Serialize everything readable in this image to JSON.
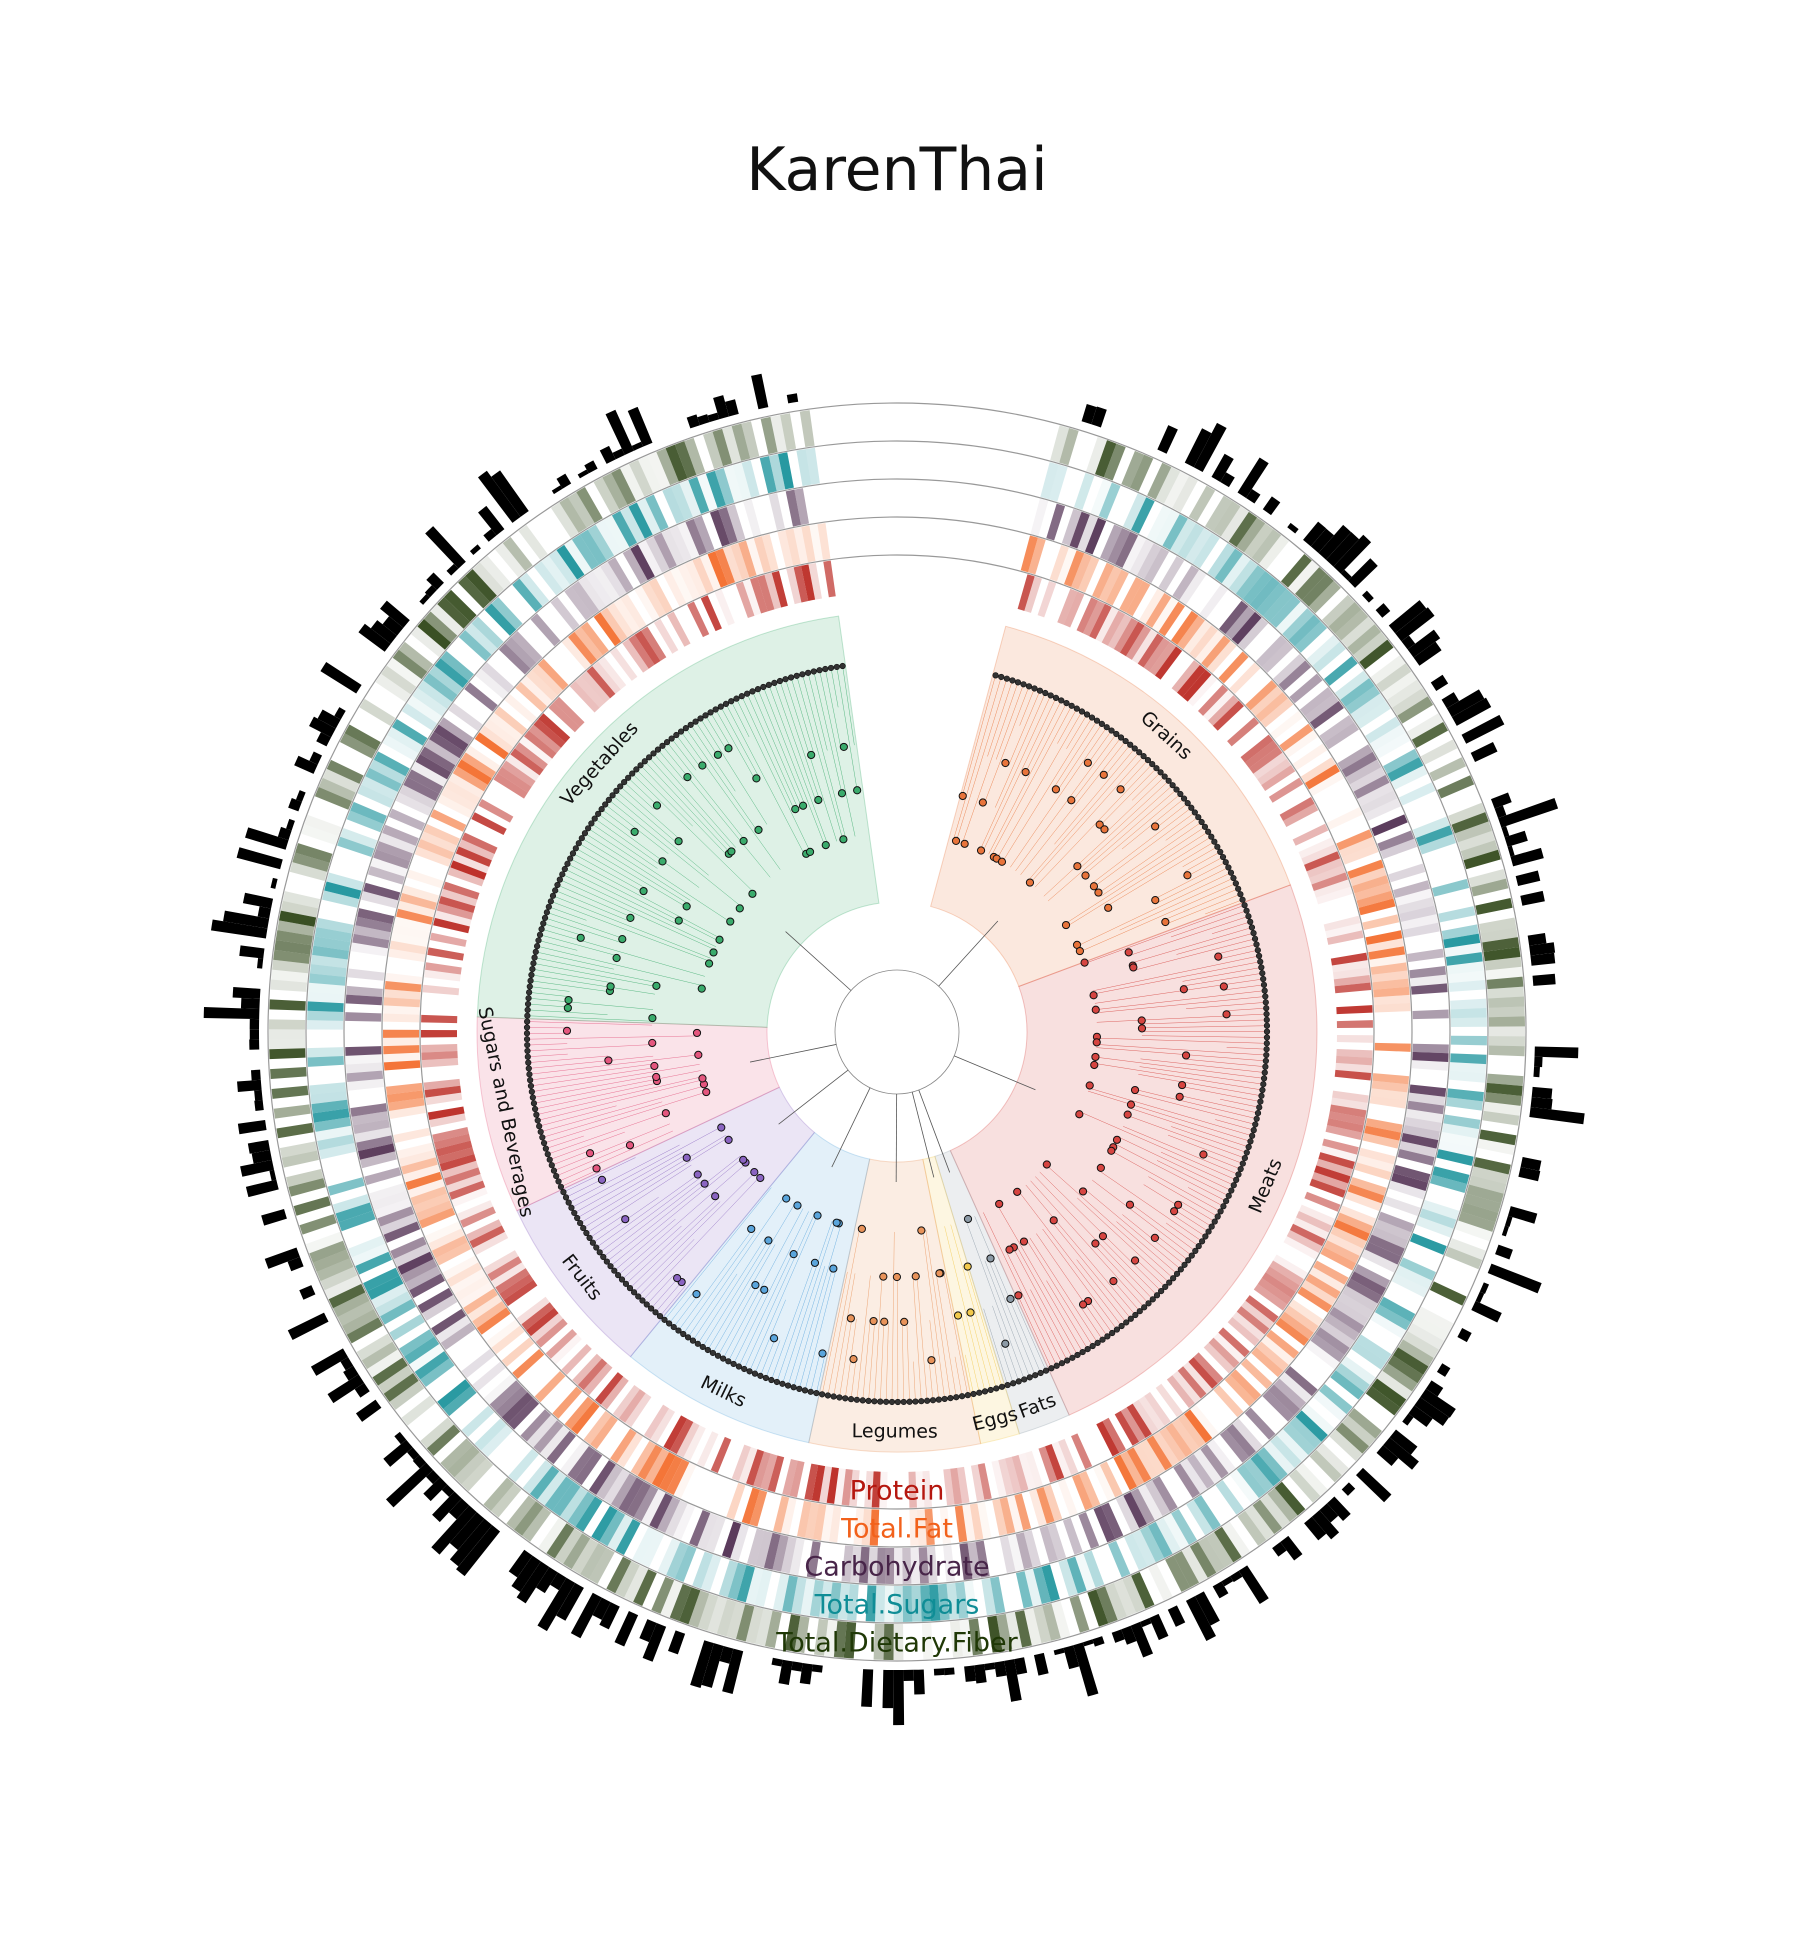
{
  "title": "KarenThai",
  "chart_data": {
    "type": "circular-tree-heatmap",
    "title": "KarenThai",
    "clades": [
      {
        "name": "Grains",
        "color": "#e8743b",
        "leaves": 60
      },
      {
        "name": "Meats",
        "color": "#d64541",
        "leaves": 95
      },
      {
        "name": "Fats",
        "color": "#8c9aa6",
        "leaves": 8
      },
      {
        "name": "Eggs",
        "color": "#f2c94c",
        "leaves": 6
      },
      {
        "name": "Legumes",
        "color": "#e8935a",
        "leaves": 26
      },
      {
        "name": "Milks",
        "color": "#5aa5dc",
        "leaves": 30
      },
      {
        "name": "Fruits",
        "color": "#8a64c1",
        "leaves": 28
      },
      {
        "name": "Sugars and Beverages",
        "color": "#e4567e",
        "leaves": 30
      },
      {
        "name": "Vegetables",
        "color": "#3aab6c",
        "leaves": 88
      }
    ],
    "rings": [
      {
        "name": "Protein",
        "color": "#b5170f"
      },
      {
        "name": "Total.Fat",
        "color": "#f2611b"
      },
      {
        "name": "Carbohydrate",
        "color": "#482549"
      },
      {
        "name": "Total.Sugars",
        "color": "#0f8d96"
      },
      {
        "name": "Total.Dietary.Fiber",
        "color": "#1f3806"
      }
    ]
  }
}
